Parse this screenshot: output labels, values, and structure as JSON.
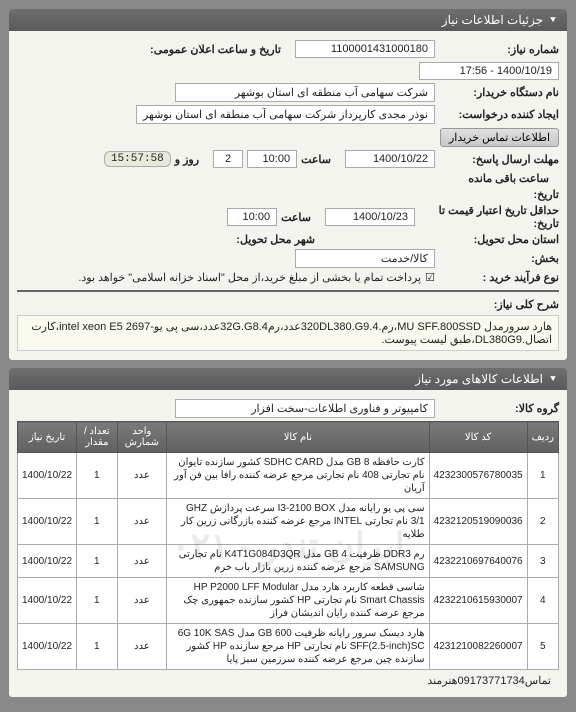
{
  "panels": {
    "need_info": {
      "title": "جزئیات اطلاعات نیاز",
      "rows": {
        "need_no_label": "شماره نیاز:",
        "need_no": "1100001431000180",
        "announce_label": "تاریخ و ساعت اعلان عمومی:",
        "announce": "1400/10/19 - 17:56",
        "buyer_label": "نام دستگاه خریدار:",
        "buyer": "شرکت سهامی آب منطقه ای استان بوشهر",
        "creator_label": "ایجاد کننده درخواست:",
        "creator": "نوذر مجدی کارپرداز شرکت سهامی آب منطقه ای استان بوشهر",
        "contact_btn": "اطلاعات تماس خریدار",
        "deadline_label": "مهلت ارسال پاسخ:",
        "deadline_date": "1400/10/22",
        "hour_lbl": "ساعت",
        "deadline_hour": "10:00",
        "day_lbl": "روز و",
        "day_val": "2",
        "remain_lbl": "ساعت باقی مانده",
        "remain_timer": "15:57:58",
        "history_label": "تاریخ:",
        "validity_label": "حداقل تاریخ اعتبار قیمت تا تاریخ:",
        "validity_date": "1400/10/23",
        "validity_hour": "10:00",
        "delivery_prov_lbl": "استان محل تحویل:",
        "delivery_city_lbl": "شهر محل تحویل:",
        "district_lbl": "بخش:",
        "district": "کالا/خدمت",
        "process_lbl": "نوع فرآیند خرید :",
        "process_note": "پرداخت تمام یا بخشی از مبلغ خرید،از محل \"اسناد خزانه اسلامی\" خواهد بود.",
        "checkbox": "☑"
      },
      "divider1": true,
      "general_desc_lbl": "شرح کلی نیاز:",
      "general_desc": "هارد سرورمدل MU SFF.800SSD،رم.320DL380.G9.4عدد،رم32G.G8.4عدد،سی پی یو-intel xeon E5 2697،کارت اتصال.DL380G9،طبق لیست پیوست."
    },
    "items_info": {
      "title": "اطلاعات کالاهای مورد نیاز",
      "group_lbl": "گروه کالا:",
      "group": "کامپیوتر و فناوری اطلاعات-سخت افزار",
      "watermark": "ایران تندر - ۰۲۱",
      "columns": [
        "ردیف",
        "کد کالا",
        "نام کالا",
        "واحد شمارش",
        "تعداد / مقدار",
        "تاریخ نیاز"
      ],
      "rows": [
        {
          "idx": "1",
          "code": "4232300576780035",
          "name": "کارت حافظه GB 8 مدل SDHC CARD کشور سازنده تایوان نام تجارتی 408 نام تجارتی مرجع عرضه کننده رافا بین فن آور آریان",
          "unit": "عدد",
          "qty": "1",
          "date": "1400/10/22"
        },
        {
          "idx": "2",
          "code": "4232120519090036",
          "name": "سی پی یو رایانه مدل I3-2100 BOX سرعت پردازش GHZ 3/1 نام تجارتی INTEL مرجع عرضه کننده بازرگانی زرین کار طلایه",
          "unit": "عدد",
          "qty": "1",
          "date": "1400/10/22"
        },
        {
          "idx": "3",
          "code": "4232210697640076",
          "name": "رم DDR3 ظرفیت GB 4 مدل K4T1G084D3QR نام تجارتی SAMSUNG مرجع عرضه کننده زرین بازار باب خرم",
          "unit": "عدد",
          "qty": "1",
          "date": "1400/10/22"
        },
        {
          "idx": "4",
          "code": "4232210615930007",
          "name": "شاسی قطعه کاربرد هارد مدل HP P2000 LFF Modular Smart Chassis نام تجارتی HP کشور سازنده جمهوری چک مرجع عرضه کننده رایان اندیشان فراز",
          "unit": "عدد",
          "qty": "1",
          "date": "1400/10/22"
        },
        {
          "idx": "5",
          "code": "4231210082260007",
          "name": "هارد دیسک سرور رایانه ظرفیت GB 600 مدل 6G 10K SAS SFF(2.5-inch)SC نام تجارتی HP مرجع سازنده HP کشور سازنده چین مرجع عرضه کننده سرزمین سبز پایا",
          "unit": "عدد",
          "qty": "1",
          "date": "1400/10/22"
        }
      ]
    }
  },
  "footer": "تماس09173771734هنرمند"
}
